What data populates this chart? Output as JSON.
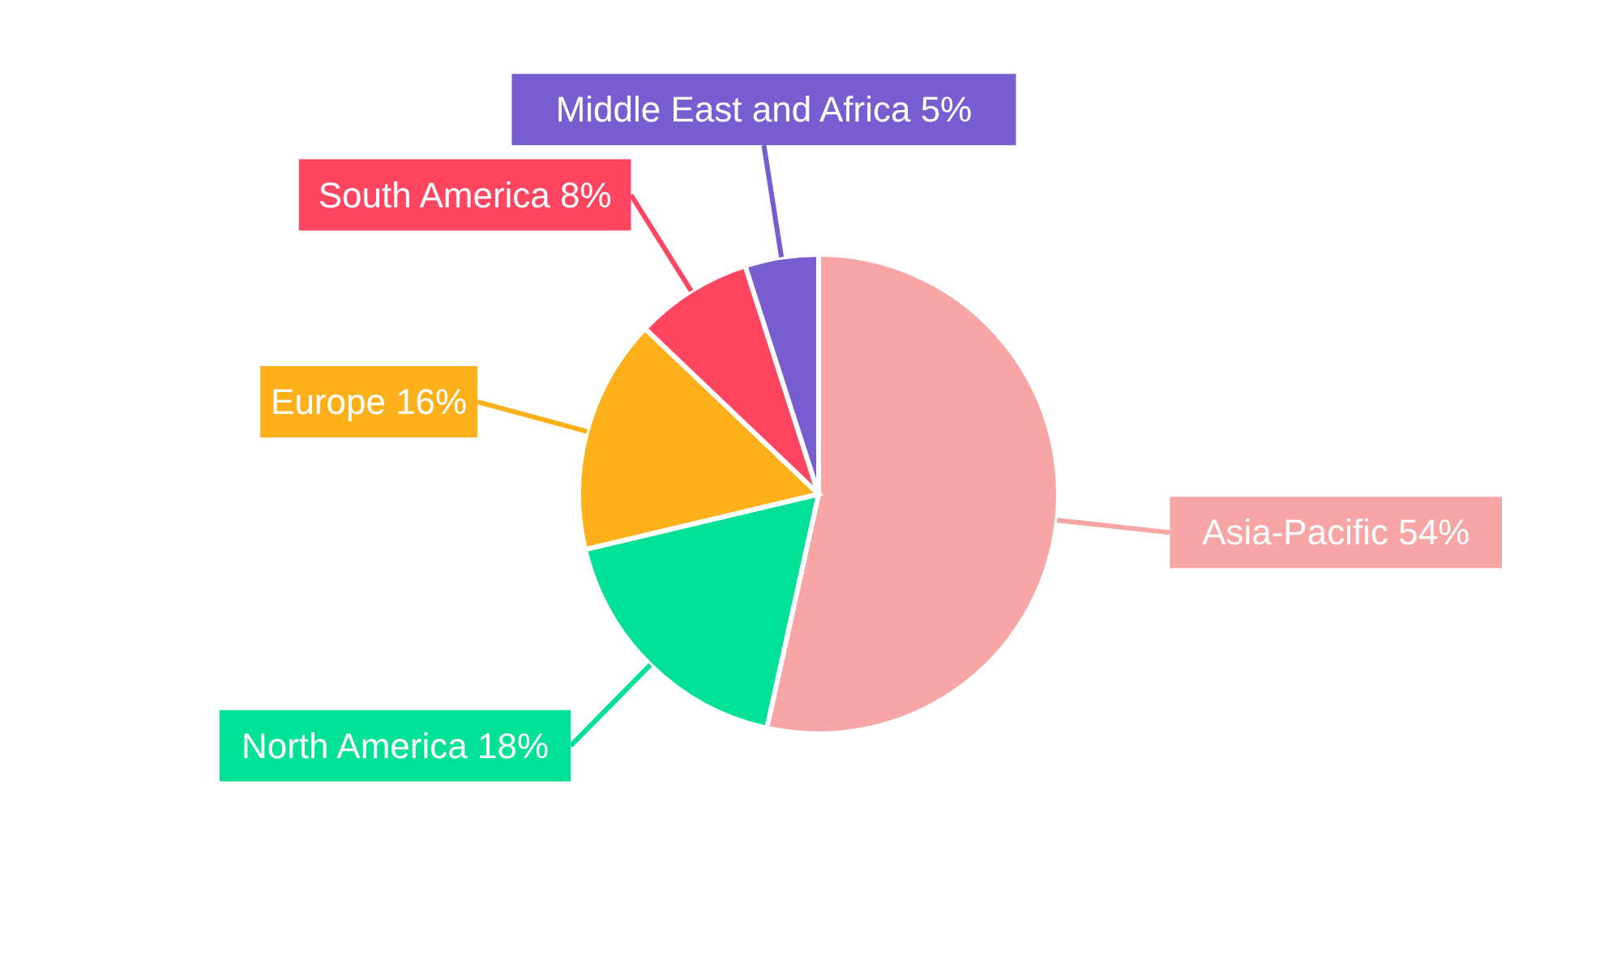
{
  "chart_data": {
    "type": "pie",
    "categories": [
      "Asia-Pacific",
      "North America",
      "Europe",
      "South America",
      "Middle East and Africa"
    ],
    "values": [
      54,
      18,
      16,
      8,
      5
    ],
    "value_labels": [
      "54%",
      "18%",
      "16%",
      "8%",
      "5%"
    ],
    "colors": [
      "#f8a5a5",
      "#00e096",
      "#fdb01a",
      "#ff4560",
      "#775dd0"
    ],
    "legend": false
  }
}
